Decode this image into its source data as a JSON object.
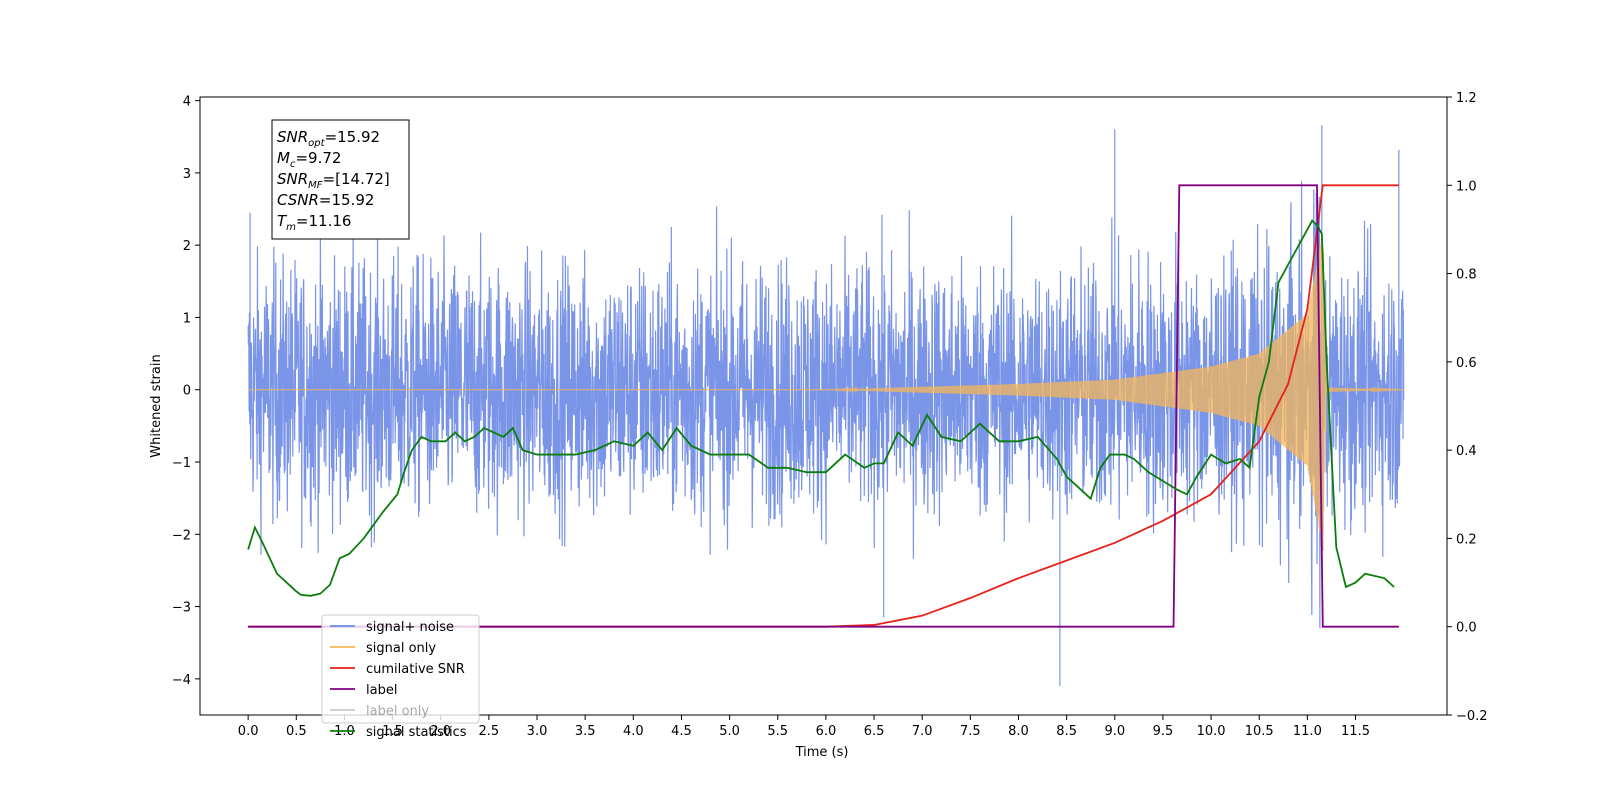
{
  "chart_data": {
    "type": "line",
    "xlabel": "Time (s)",
    "ylabel": "Whitened strain",
    "xlim": [
      -0.5,
      12.45
    ],
    "ylim": [
      -4.5,
      4.05
    ],
    "y2lim": [
      -0.2,
      1.2
    ],
    "x_ticks": [
      0.0,
      0.5,
      1.0,
      1.5,
      2.0,
      2.5,
      3.0,
      3.5,
      4.0,
      4.5,
      5.0,
      5.5,
      6.0,
      6.5,
      7.0,
      7.5,
      8.0,
      8.5,
      9.0,
      9.5,
      10.0,
      10.5,
      11.0,
      11.5
    ],
    "x_tick_labels": [
      "0.0",
      "0.5",
      "1.0",
      "1.5",
      "2.0",
      "2.5",
      "3.0",
      "3.5",
      "4.0",
      "4.5",
      "5.0",
      "5.5",
      "6.0",
      "6.5",
      "7.0",
      "7.5",
      "8.0",
      "8.5",
      "9.0",
      "9.5",
      "10.0",
      "10.5",
      "11.0",
      "11.5"
    ],
    "y_ticks": [
      -4,
      -3,
      -2,
      -1,
      0,
      1,
      2,
      3,
      4
    ],
    "y_tick_labels": [
      "−4",
      "−3",
      "−2",
      "−1",
      "0",
      "1",
      "2",
      "3",
      "4"
    ],
    "y2_ticks": [
      -0.2,
      0.0,
      0.2,
      0.4,
      0.6,
      0.8,
      1.0,
      1.2
    ],
    "y2_tick_labels": [
      "−0.2",
      "0.0",
      "0.2",
      "0.4",
      "0.6",
      "0.8",
      "1.0",
      "1.2"
    ],
    "grid": false,
    "legend_position": "lower-left",
    "series": [
      {
        "name": "signal+ noise",
        "color": "#6b88e4",
        "axis": "left",
        "kind": "noise",
        "x_range": [
          0.0,
          12.0
        ],
        "typical_band": [
          -1.6,
          1.6
        ],
        "notable_points": [
          [
            0.02,
            2.45
          ],
          [
            8.43,
            -4.1
          ],
          [
            9.0,
            3.6
          ],
          [
            11.15,
            3.66
          ],
          [
            11.95,
            3.32
          ],
          [
            6.6,
            -3.15
          ]
        ]
      },
      {
        "name": "signal only",
        "color": "#f5b65a",
        "axis": "left",
        "kind": "chirp",
        "x_range": [
          0.0,
          12.0
        ],
        "merger_time": 11.16,
        "envelope": [
          [
            6.0,
            0.0
          ],
          [
            7.0,
            0.04
          ],
          [
            8.0,
            0.08
          ],
          [
            9.0,
            0.14
          ],
          [
            10.0,
            0.32
          ],
          [
            10.5,
            0.5
          ],
          [
            11.0,
            1.05
          ],
          [
            11.1,
            1.75
          ],
          [
            11.16,
            2.2
          ],
          [
            11.2,
            0.03
          ],
          [
            12.0,
            0.0
          ]
        ]
      },
      {
        "name": "cumilative SNR",
        "color": "#e8201a",
        "axis": "right",
        "x": [
          0.0,
          6.0,
          6.5,
          7.0,
          7.5,
          8.0,
          8.5,
          9.0,
          9.5,
          10.0,
          10.5,
          10.8,
          11.0,
          11.16,
          11.95
        ],
        "values": [
          0.0,
          0.0,
          0.004,
          0.025,
          0.065,
          0.11,
          0.15,
          0.19,
          0.24,
          0.3,
          0.42,
          0.55,
          0.72,
          1.0,
          1.0
        ]
      },
      {
        "name": "label",
        "color": "#800080",
        "axis": "right",
        "x": [
          0.0,
          9.61,
          9.67,
          11.1,
          11.16,
          11.95
        ],
        "values": [
          0.0,
          0.0,
          1.0,
          1.0,
          0.0,
          0.0
        ]
      },
      {
        "name": "label only",
        "color": "#777777",
        "axis": "right",
        "hidden_in_plot": true,
        "x": [],
        "values": []
      },
      {
        "name": "signal statistics",
        "color": "#0a7d0a",
        "axis": "right",
        "x": [
          0.0,
          0.07,
          0.15,
          0.3,
          0.4,
          0.5,
          0.55,
          0.65,
          0.75,
          0.85,
          0.95,
          1.05,
          1.2,
          1.3,
          1.4,
          1.55,
          1.62,
          1.7,
          1.8,
          1.9,
          2.05,
          2.15,
          2.25,
          2.35,
          2.45,
          2.55,
          2.65,
          2.75,
          2.85,
          3.0,
          3.2,
          3.4,
          3.6,
          3.8,
          4.0,
          4.15,
          4.3,
          4.45,
          4.6,
          4.8,
          5.0,
          5.2,
          5.4,
          5.6,
          5.8,
          6.0,
          6.2,
          6.4,
          6.5,
          6.6,
          6.75,
          6.9,
          7.05,
          7.2,
          7.4,
          7.6,
          7.8,
          8.0,
          8.2,
          8.4,
          8.5,
          8.6,
          8.75,
          8.85,
          8.95,
          9.1,
          9.2,
          9.35,
          9.5,
          9.65,
          9.75,
          9.85,
          10.0,
          10.15,
          10.3,
          10.4,
          10.5,
          10.6,
          10.7,
          10.8,
          10.9,
          11.0,
          11.05,
          11.1,
          11.15,
          11.2,
          11.3,
          11.4,
          11.5,
          11.6,
          11.8,
          11.9
        ],
        "values": [
          0.175,
          0.225,
          0.19,
          0.12,
          0.1,
          0.08,
          0.072,
          0.07,
          0.075,
          0.095,
          0.155,
          0.165,
          0.2,
          0.23,
          0.26,
          0.3,
          0.35,
          0.4,
          0.43,
          0.42,
          0.42,
          0.44,
          0.42,
          0.43,
          0.45,
          0.44,
          0.43,
          0.45,
          0.4,
          0.39,
          0.39,
          0.39,
          0.4,
          0.42,
          0.41,
          0.44,
          0.4,
          0.45,
          0.41,
          0.39,
          0.39,
          0.39,
          0.36,
          0.36,
          0.35,
          0.35,
          0.39,
          0.36,
          0.37,
          0.37,
          0.44,
          0.41,
          0.48,
          0.43,
          0.42,
          0.46,
          0.42,
          0.42,
          0.43,
          0.38,
          0.34,
          0.32,
          0.29,
          0.36,
          0.39,
          0.39,
          0.38,
          0.35,
          0.33,
          0.31,
          0.3,
          0.34,
          0.39,
          0.37,
          0.38,
          0.36,
          0.52,
          0.6,
          0.78,
          0.82,
          0.86,
          0.9,
          0.92,
          0.91,
          0.89,
          0.6,
          0.18,
          0.09,
          0.1,
          0.12,
          0.11,
          0.09
        ]
      }
    ],
    "annotation_box": {
      "lines": [
        {
          "var": "SNR",
          "sub": "opt",
          "text": "=15.92"
        },
        {
          "var": "M",
          "sub": "c",
          "text": "=9.72"
        },
        {
          "var": "SNR",
          "sub": "MF",
          "text": "=[14.72]"
        },
        {
          "var": "CSNR",
          "sub": "",
          "text": "=15.92"
        },
        {
          "var": "T",
          "sub": "m",
          "text": "=11.16"
        }
      ]
    }
  }
}
